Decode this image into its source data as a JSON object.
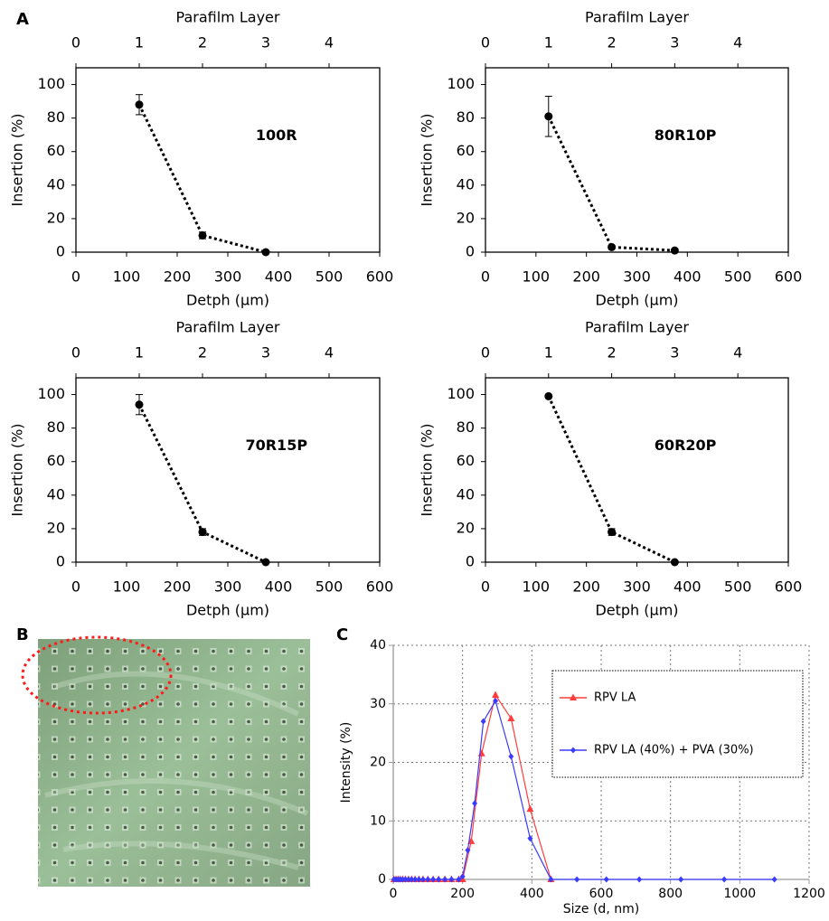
{
  "panel_labels": [
    "A",
    "B",
    "C"
  ],
  "chart_data": [
    {
      "type": "line",
      "x_label": "Detph (μm)",
      "x2_label": "Parafilm Layer",
      "y_label": "Insertion (%)",
      "annotation": "100R",
      "x": [
        125,
        250,
        375
      ],
      "xlim": [
        0,
        600
      ],
      "xticks": [
        0,
        100,
        200,
        300,
        400,
        500,
        600
      ],
      "x2lim": [
        0,
        4.8
      ],
      "x2ticks": [
        0,
        1,
        2,
        3,
        4
      ],
      "ylim": [
        0,
        110
      ],
      "yticks": [
        0,
        20,
        40,
        60,
        80,
        100
      ],
      "grid": false,
      "frame": true,
      "series": [
        {
          "color": "#000000",
          "marker": "circle",
          "linestyle": "dotted",
          "values": [
            88,
            10,
            0
          ],
          "errors": [
            6,
            2,
            1
          ]
        }
      ]
    },
    {
      "type": "line",
      "x_label": "Detph (μm)",
      "x2_label": "Parafilm Layer",
      "y_label": "Insertion (%)",
      "annotation": "80R10P",
      "x": [
        125,
        250,
        375
      ],
      "xlim": [
        0,
        600
      ],
      "xticks": [
        0,
        100,
        200,
        300,
        400,
        500,
        600
      ],
      "x2lim": [
        0,
        4.8
      ],
      "x2ticks": [
        0,
        1,
        2,
        3,
        4
      ],
      "ylim": [
        0,
        110
      ],
      "yticks": [
        0,
        20,
        40,
        60,
        80,
        100
      ],
      "grid": false,
      "frame": true,
      "series": [
        {
          "color": "#000000",
          "marker": "circle",
          "linestyle": "dotted",
          "values": [
            81,
            3,
            1
          ],
          "errors": [
            12,
            1,
            0.5
          ]
        }
      ]
    },
    {
      "type": "line",
      "x_label": "Detph (μm)",
      "x2_label": "Parafilm Layer",
      "y_label": "Insertion (%)",
      "annotation": "70R15P",
      "x": [
        125,
        250,
        375
      ],
      "xlim": [
        0,
        600
      ],
      "xticks": [
        0,
        100,
        200,
        300,
        400,
        500,
        600
      ],
      "x2lim": [
        0,
        4.8
      ],
      "x2ticks": [
        0,
        1,
        2,
        3,
        4
      ],
      "ylim": [
        0,
        110
      ],
      "yticks": [
        0,
        20,
        40,
        60,
        80,
        100
      ],
      "grid": false,
      "frame": true,
      "series": [
        {
          "color": "#000000",
          "marker": "circle",
          "linestyle": "dotted",
          "values": [
            94,
            18,
            0
          ],
          "errors": [
            6,
            2,
            0.5
          ]
        }
      ]
    },
    {
      "type": "line",
      "x_label": "Detph (μm)",
      "x2_label": "Parafilm Layer",
      "y_label": "Insertion (%)",
      "annotation": "60R20P",
      "x": [
        125,
        250,
        375
      ],
      "xlim": [
        0,
        600
      ],
      "xticks": [
        0,
        100,
        200,
        300,
        400,
        500,
        600
      ],
      "x2lim": [
        0,
        4.8
      ],
      "x2ticks": [
        0,
        1,
        2,
        3,
        4
      ],
      "ylim": [
        0,
        110
      ],
      "yticks": [
        0,
        20,
        40,
        60,
        80,
        100
      ],
      "grid": false,
      "frame": true,
      "series": [
        {
          "color": "#000000",
          "marker": "circle",
          "linestyle": "dotted",
          "values": [
            99,
            18,
            0
          ],
          "errors": [
            0,
            2,
            0
          ]
        }
      ]
    },
    {
      "type": "line",
      "x_label": "Size (d, nm)",
      "y_label": "Intensity (%)",
      "xlim": [
        0,
        1200
      ],
      "xticks": [
        0,
        200,
        400,
        600,
        800,
        1000,
        1200
      ],
      "ylim": [
        0,
        40
      ],
      "yticks": [
        0,
        10,
        20,
        30,
        40
      ],
      "grid": true,
      "frame": false,
      "legend": "right",
      "series": [
        {
          "name": "RPV LA",
          "color": "#ff3b3b",
          "marker": "triangle",
          "linestyle": "solid",
          "x": [
            2,
            8,
            14,
            20,
            27,
            35,
            44,
            53,
            63,
            74,
            86,
            100,
            115,
            131,
            149,
            168,
            189,
            200,
            225,
            255,
            295,
            340,
            395,
            455
          ],
          "values": [
            0,
            0,
            0,
            0,
            0,
            0,
            0,
            0,
            0,
            0,
            0,
            0,
            0,
            0,
            0,
            0,
            0,
            0,
            6.5,
            21.5,
            31.5,
            27.5,
            12,
            0
          ]
        },
        {
          "name": "RPV LA (40%) + PVA (30%)",
          "color": "#3b3bff",
          "marker": "diamond",
          "linestyle": "solid",
          "x": [
            2,
            8,
            14,
            20,
            27,
            35,
            44,
            53,
            63,
            74,
            86,
            100,
            115,
            131,
            149,
            168,
            189,
            200,
            215,
            235,
            260,
            295,
            340,
            395,
            455,
            530,
            615,
            710,
            830,
            955,
            1100
          ],
          "values": [
            0,
            0,
            0,
            0,
            0,
            0,
            0,
            0,
            0,
            0,
            0,
            0,
            0,
            0,
            0,
            0,
            0,
            0.5,
            5,
            13,
            27,
            30.5,
            21,
            7,
            0,
            0,
            0,
            0,
            0,
            0,
            0
          ]
        }
      ]
    }
  ]
}
